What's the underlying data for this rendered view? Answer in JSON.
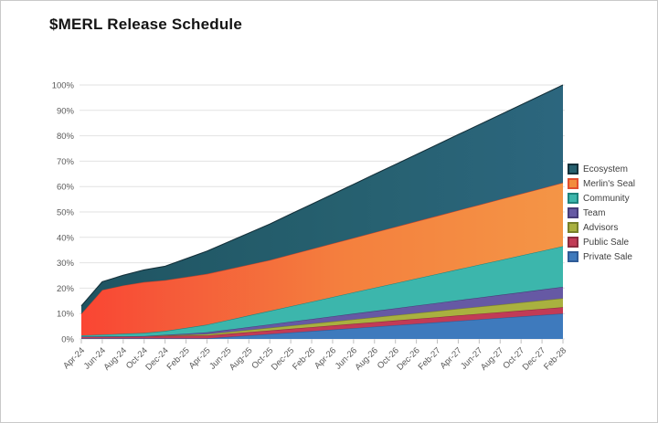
{
  "chart_data": {
    "type": "area",
    "stacked": true,
    "title": "$MERL Release Schedule",
    "xlabel": "",
    "ylabel": "",
    "ylim": [
      0,
      100
    ],
    "grid": "horizontal",
    "legend_position": "right",
    "y_tick_labels": [
      "0%",
      "10%",
      "20%",
      "30%",
      "40%",
      "50%",
      "60%",
      "70%",
      "80%",
      "90%",
      "100%"
    ],
    "categories": [
      "Apr-24",
      "Jun-24",
      "Aug-24",
      "Oct-24",
      "Dec-24",
      "Feb-25",
      "Apr-25",
      "Jun-25",
      "Aug-25",
      "Oct-25",
      "Dec-25",
      "Feb-26",
      "Apr-26",
      "Jun-26",
      "Aug-26",
      "Oct-26",
      "Dec-26",
      "Feb-27",
      "Apr-27",
      "Jun-27",
      "Aug-27",
      "Oct-27",
      "Dec-27",
      "Feb-28"
    ],
    "series_note": "values are cumulative % of total supply unlocked; series listed bottom-to-top in stack order",
    "series": [
      {
        "name": "Private Sale",
        "fill": "#3E7ABD",
        "stroke": "#2F5B96",
        "values": [
          0.2,
          0.2,
          0.2,
          0.2,
          0.2,
          0.2,
          0.2,
          0.78,
          1.35,
          1.93,
          2.51,
          3.08,
          3.66,
          4.24,
          4.81,
          5.39,
          5.96,
          6.54,
          7.12,
          7.69,
          8.27,
          8.85,
          9.42,
          10
        ]
      },
      {
        "name": "Public Sale",
        "fill": "#C23B56",
        "stroke": "#8C2B3F",
        "values": [
          0.7,
          0.78,
          0.86,
          0.93,
          1.01,
          1.09,
          1.17,
          1.25,
          1.33,
          1.4,
          1.48,
          1.56,
          1.64,
          1.72,
          1.8,
          1.87,
          1.95,
          2.03,
          2.11,
          2.19,
          2.27,
          2.34,
          2.42,
          2.5
        ]
      },
      {
        "name": "Advisors",
        "fill": "#A9B13F",
        "stroke": "#77802A",
        "values": [
          0,
          0,
          0,
          0,
          0.18,
          0.35,
          0.53,
          0.7,
          0.88,
          1.05,
          1.23,
          1.4,
          1.58,
          1.75,
          1.93,
          2.1,
          2.28,
          2.45,
          2.63,
          2.8,
          2.98,
          3.15,
          3.33,
          3.5
        ]
      },
      {
        "name": "Team",
        "fill": "#6659A4",
        "stroke": "#473C78",
        "values": [
          0,
          0,
          0,
          0,
          0.23,
          0.45,
          0.68,
          0.9,
          1.13,
          1.35,
          1.58,
          1.8,
          2.03,
          2.25,
          2.48,
          2.7,
          2.93,
          3.15,
          3.38,
          3.6,
          3.83,
          4.05,
          4.28,
          4.5
        ]
      },
      {
        "name": "Community",
        "fill": "#3CB6AC",
        "stroke": "#1E837C",
        "values": [
          0.5,
          0.75,
          1,
          1.25,
          1.5,
          2.26,
          3.03,
          3.79,
          4.55,
          5.32,
          6.08,
          6.84,
          7.61,
          8.37,
          9.13,
          9.89,
          10.66,
          11.42,
          12.18,
          12.95,
          13.71,
          14.47,
          15.24,
          16
        ]
      },
      {
        "name": "Merlin's Seal",
        "stroke": "#C8432B",
        "fill_stops": [
          [
            "0",
            "#FA4533"
          ],
          [
            "0.18",
            "#F55A39"
          ],
          [
            "0.55",
            "#F4803E"
          ],
          [
            "1",
            "#F49546"
          ]
        ],
        "values": [
          8.5,
          17.5,
          19,
          20,
          20,
          20,
          20,
          20,
          20,
          20,
          20.36,
          20.71,
          21.07,
          21.43,
          21.79,
          22.14,
          22.5,
          22.86,
          23.21,
          23.57,
          23.93,
          24.29,
          24.64,
          25
        ]
      },
      {
        "name": "Ecosystem",
        "stroke": "#15313B",
        "fill_stops": [
          [
            "0",
            "#1F5462"
          ],
          [
            "0.55",
            "#26606F"
          ],
          [
            "1",
            "#2C667E"
          ]
        ],
        "values": [
          3.1,
          3.3,
          4,
          4.8,
          5.5,
          7.24,
          8.97,
          10.71,
          12.45,
          14.18,
          15.92,
          17.66,
          19.39,
          21.13,
          22.87,
          24.61,
          26.34,
          28.08,
          29.82,
          31.55,
          33.29,
          35.03,
          36.76,
          38.5
        ]
      }
    ]
  },
  "legend": {
    "items": [
      {
        "label": "Ecosystem",
        "fill": "#26606F",
        "border": "#15313B"
      },
      {
        "label": "Merlin's Seal",
        "fill": "#F28C3D",
        "border": "#E04E2F"
      },
      {
        "label": "Community",
        "fill": "#3CB6AC",
        "border": "#1E837C"
      },
      {
        "label": "Team",
        "fill": "#6659A4",
        "border": "#473C78"
      },
      {
        "label": "Advisors",
        "fill": "#A9B13F",
        "border": "#77802A"
      },
      {
        "label": "Public Sale",
        "fill": "#C23B56",
        "border": "#8C2B3F"
      },
      {
        "label": "Private Sale",
        "fill": "#3E7ABD",
        "border": "#2F5B96"
      }
    ]
  }
}
